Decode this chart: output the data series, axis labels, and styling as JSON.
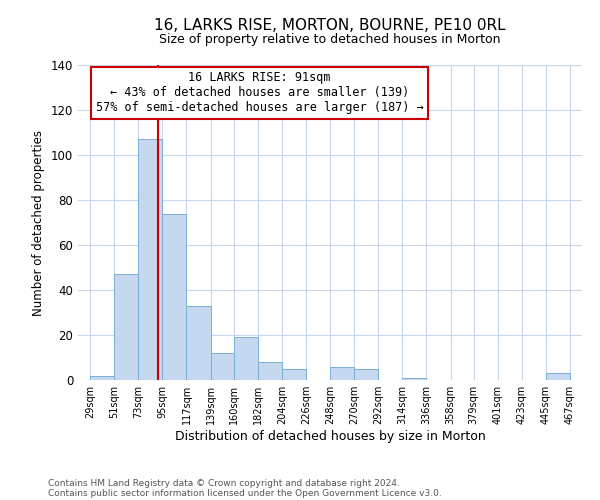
{
  "title": "16, LARKS RISE, MORTON, BOURNE, PE10 0RL",
  "subtitle": "Size of property relative to detached houses in Morton",
  "xlabel": "Distribution of detached houses by size in Morton",
  "ylabel": "Number of detached properties",
  "footer_line1": "Contains HM Land Registry data © Crown copyright and database right 2024.",
  "footer_line2": "Contains public sector information licensed under the Open Government Licence v3.0.",
  "annotation_title": "16 LARKS RISE: 91sqm",
  "annotation_line1": "← 43% of detached houses are smaller (139)",
  "annotation_line2": "57% of semi-detached houses are larger (187) →",
  "bar_bins": [
    29,
    51,
    73,
    95,
    117,
    139,
    160,
    182,
    204,
    226,
    248,
    270,
    292,
    314,
    336,
    358,
    379,
    401,
    423,
    445,
    467
  ],
  "bar_heights": [
    2,
    47,
    107,
    74,
    33,
    12,
    19,
    8,
    5,
    0,
    6,
    5,
    0,
    1,
    0,
    0,
    0,
    0,
    0,
    3
  ],
  "bar_color": "#c5d8f0",
  "bar_edge_color": "#7aafd4",
  "vline_x": 91,
  "vline_color": "#cc0000",
  "ylim": [
    0,
    140
  ],
  "yticks": [
    0,
    20,
    40,
    60,
    80,
    100,
    120,
    140
  ],
  "background_color": "#ffffff",
  "grid_color": "#c8d8ec"
}
